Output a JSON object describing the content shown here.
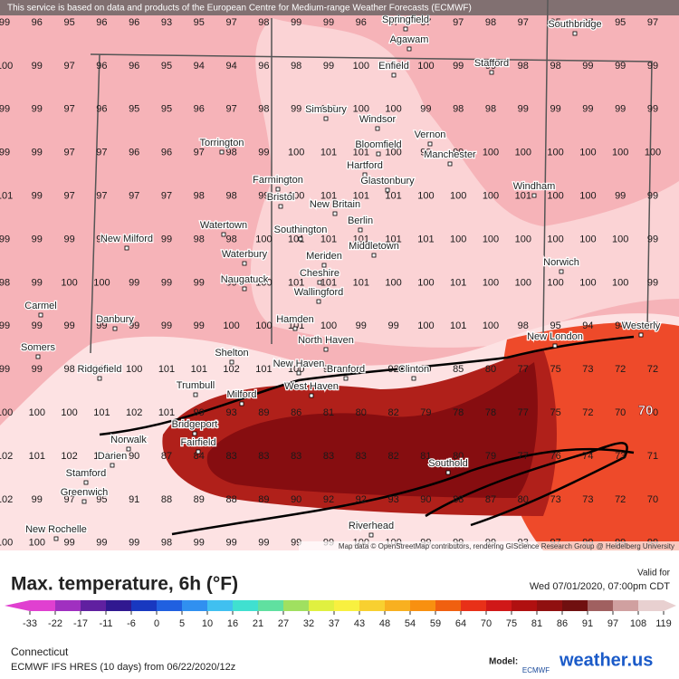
{
  "header": {
    "notice": "This service is based on data and products of the European Centre for Medium-range Weather Forecasts (ECMWF)",
    "attribution": "Map data © OpenStreetMap contributors, rendering GIScience Research Group @ Heidelberg University",
    "highlight": "70"
  },
  "grid": [
    [
      99,
      96,
      95,
      96,
      96,
      93,
      95,
      97,
      98,
      99,
      99,
      96,
      97,
      97,
      97,
      98,
      97,
      95,
      97,
      95,
      97
    ],
    [
      100,
      99,
      97,
      96,
      96,
      95,
      94,
      94,
      96,
      98,
      99,
      100,
      100,
      100,
      99,
      99,
      98,
      98,
      99,
      99,
      99
    ],
    [
      99,
      99,
      97,
      96,
      95,
      95,
      96,
      97,
      98,
      99,
      100,
      100,
      100,
      99,
      98,
      98,
      99,
      99,
      99,
      99,
      99
    ],
    [
      99,
      99,
      97,
      97,
      96,
      96,
      97,
      98,
      99,
      100,
      101,
      101,
      100,
      99,
      99,
      100,
      100,
      100,
      100,
      100,
      100
    ],
    [
      101,
      99,
      97,
      97,
      97,
      97,
      98,
      98,
      99,
      100,
      101,
      101,
      101,
      100,
      100,
      100,
      101,
      100,
      100,
      99,
      99
    ],
    [
      99,
      99,
      99,
      99,
      99,
      99,
      98,
      98,
      100,
      101,
      101,
      101,
      101,
      101,
      100,
      100,
      100,
      100,
      100,
      100,
      99
    ],
    [
      98,
      99,
      100,
      100,
      99,
      99,
      99,
      99,
      100,
      101,
      101,
      101,
      100,
      100,
      101,
      100,
      100,
      100,
      100,
      100,
      99
    ],
    [
      99,
      99,
      99,
      99,
      99,
      99,
      99,
      100,
      100,
      101,
      100,
      99,
      99,
      100,
      101,
      100,
      98,
      95,
      94,
      94,
      95
    ],
    [
      99,
      99,
      98,
      100,
      100,
      101,
      101,
      102,
      101,
      100,
      99,
      91,
      92,
      90,
      85,
      80,
      77,
      75,
      73,
      72,
      72
    ],
    [
      100,
      100,
      100,
      101,
      102,
      101,
      99,
      93,
      89,
      86,
      81,
      80,
      82,
      79,
      78,
      78,
      77,
      75,
      72,
      70,
      70
    ],
    [
      102,
      101,
      102,
      101,
      90,
      87,
      84,
      83,
      83,
      83,
      83,
      83,
      82,
      81,
      80,
      79,
      77,
      76,
      74,
      73,
      71
    ],
    [
      102,
      99,
      97,
      95,
      91,
      88,
      89,
      88,
      89,
      90,
      92,
      92,
      93,
      90,
      88,
      87,
      80,
      73,
      73,
      72,
      70
    ],
    [
      100,
      100,
      99,
      99,
      99,
      98,
      99,
      99,
      99,
      99,
      99,
      100,
      100,
      99,
      99,
      99,
      93,
      97,
      99,
      99,
      99
    ]
  ],
  "places": [
    "Springfield",
    "Agawam",
    "Southbridge",
    "Enfield",
    "Stafford",
    "Simsbury",
    "Windsor",
    "Vernon",
    "Torrington",
    "Bloomfield",
    "Manchester",
    "Hartford",
    "Farmington",
    "Glastonbury",
    "Windham",
    "Bristol",
    "New Britain",
    "Berlin",
    "Watertown",
    "Southington",
    "New Milford",
    "Waterbury",
    "Meriden",
    "Middletown",
    "Norwich",
    "Naugatuck",
    "Cheshire",
    "Wallingford",
    "Carmel",
    "Danbury",
    "Hamden",
    "North Haven",
    "New London",
    "Westerly",
    "Somers",
    "Shelton",
    "New Haven",
    "Ridgefield",
    "Branford",
    "Clinton",
    "West Haven",
    "Trumbull",
    "Milford",
    "Bridgeport",
    "Norwalk",
    "Fairfield",
    "Darien",
    "Southold",
    "Stamford",
    "Greenwich",
    "Riverhead",
    "New Rochelle"
  ],
  "legend": {
    "title": "Max. temperature, 6h (°F)",
    "valid_label": "Valid for",
    "valid_time": "Wed 07/01/2020, 07:00pm CDT",
    "ticks": [
      -33,
      -22,
      -17,
      -11,
      -6,
      0,
      5,
      10,
      16,
      21,
      27,
      32,
      37,
      43,
      48,
      54,
      59,
      64,
      70,
      75,
      81,
      86,
      91,
      97,
      108,
      119
    ],
    "colors": [
      "#e040d0",
      "#a030c0",
      "#6020a0",
      "#301890",
      "#1838c0",
      "#2060e0",
      "#3090f0",
      "#40c0f0",
      "#40e0d0",
      "#60e0a0",
      "#a0e060",
      "#e0f040",
      "#f8f040",
      "#f8d030",
      "#f8b020",
      "#f89010",
      "#f06010",
      "#e83018",
      "#d01818",
      "#b01010",
      "#901010",
      "#701010",
      "#a06060",
      "#d0a0a0",
      "#e8d0d0"
    ]
  },
  "footer": {
    "region": "Connecticut",
    "model_run": "ECMWF IFS HRES (10 days) from 06/22/2020/12z",
    "model_label": "Model:",
    "model": "ECMWF",
    "brand": "weather.us"
  }
}
